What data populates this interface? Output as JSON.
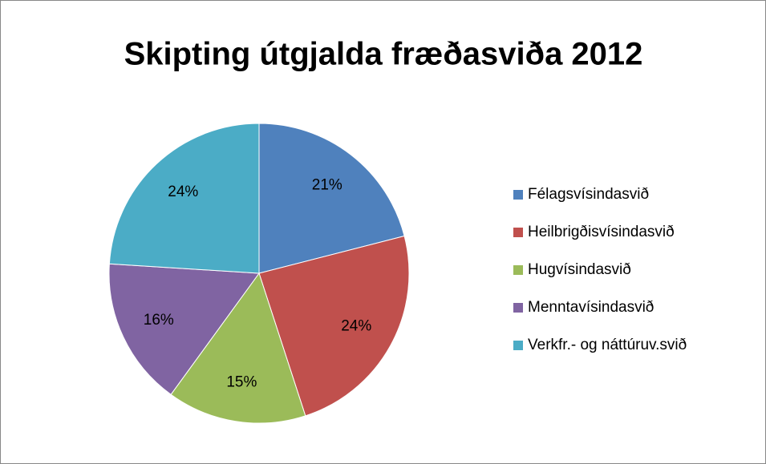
{
  "chart_data": {
    "type": "pie",
    "title": "Skipting útgjalda fræðasviða 2012",
    "categories": [
      "Félagsvísindasvið",
      "Heilbrigðisvísindasvið",
      "Hugvísindasvið",
      "Menntavísindasvið",
      "Verkfr.- og náttúruv.svið"
    ],
    "values": [
      21,
      24,
      15,
      16,
      24
    ],
    "value_labels": [
      "21%",
      "24%",
      "15%",
      "16%",
      "24%"
    ],
    "colors": [
      "#4f81bd",
      "#c0504d",
      "#9bbb59",
      "#8064a2",
      "#4bacc6"
    ],
    "legend": "right"
  }
}
